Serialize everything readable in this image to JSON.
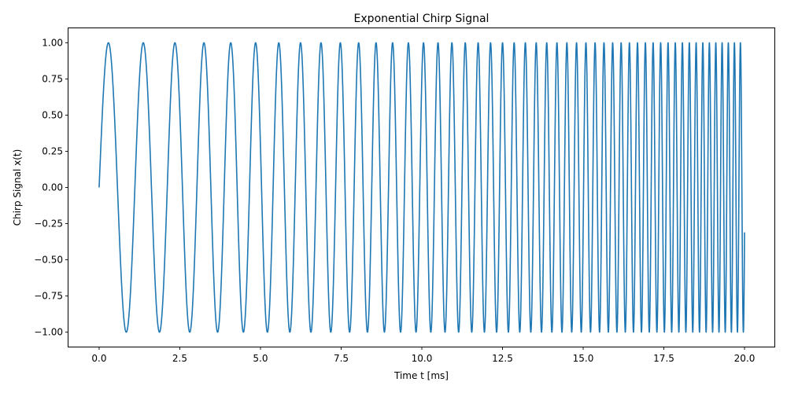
{
  "chart_data": {
    "type": "line",
    "title": "Exponential Chirp Signal",
    "xlabel": "Time t [ms]",
    "ylabel": "Chirp Signal x(t)",
    "xlim": [
      -0.95,
      20.95
    ],
    "ylim": [
      -1.1,
      1.1
    ],
    "x_ticks": [
      0.0,
      2.5,
      5.0,
      7.5,
      10.0,
      12.5,
      15.0,
      17.5,
      20.0
    ],
    "x_tick_labels": [
      "0.0",
      "2.5",
      "5.0",
      "7.5",
      "10.0",
      "12.5",
      "15.0",
      "17.5",
      "20.0"
    ],
    "y_ticks": [
      -1.0,
      -0.75,
      -0.5,
      -0.25,
      0.0,
      0.25,
      0.5,
      0.75,
      1.0
    ],
    "y_tick_labels": [
      "−1.00",
      "−0.75",
      "−0.50",
      "−0.25",
      "0.00",
      "0.25",
      "0.50",
      "0.75",
      "1.00"
    ],
    "grid": false,
    "series": [
      {
        "name": "x(t)",
        "function": "sin",
        "t_start": 0.0,
        "t_end": 20.0,
        "f0_cycles_per_ms": 0.857,
        "f1_cycles_per_ms": 5.5,
        "sweep": "exponential",
        "color": "#1f77b4"
      }
    ]
  }
}
